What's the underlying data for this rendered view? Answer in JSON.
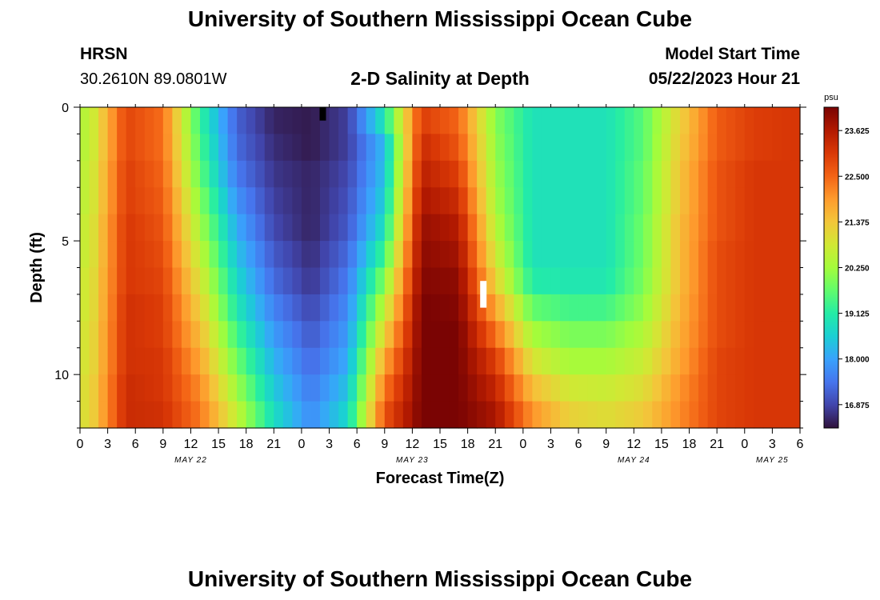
{
  "header": {
    "title": "University of Southern Mississippi Ocean Cube",
    "station": "HRSN",
    "coords": "30.2610N  89.0801W",
    "plot_title": "2-D Salinity at Depth",
    "model_label": "Model Start Time",
    "model_time": "05/22/2023 Hour 21"
  },
  "footer": {
    "title": "University of Southern Mississippi Ocean Cube"
  },
  "colors": {
    "colormap": [
      "#30123b",
      "#4145ab",
      "#4675ed",
      "#39a2fc",
      "#1bcfd4",
      "#24eca6",
      "#61fc6c",
      "#a4fc3b",
      "#d1e834",
      "#f3c63a",
      "#fe9b2d",
      "#f36315",
      "#d93806",
      "#b11901",
      "#7a0403"
    ]
  },
  "chart_data": {
    "type": "heatmap",
    "title": "2-D Salinity at Depth",
    "xlabel": "Forecast Time(Z)",
    "ylabel": "Depth (ft)",
    "x_ticks": [
      "0",
      "3",
      "6",
      "9",
      "12",
      "15",
      "18",
      "21",
      "0",
      "3",
      "6",
      "9",
      "12",
      "15",
      "18",
      "21",
      "0",
      "3",
      "6",
      "9",
      "12",
      "15",
      "18",
      "21",
      "0",
      "3",
      "6"
    ],
    "x_tick_hours": [
      0,
      3,
      6,
      9,
      12,
      15,
      18,
      21,
      24,
      27,
      30,
      33,
      36,
      39,
      42,
      45,
      48,
      51,
      54,
      57,
      60,
      63,
      66,
      69,
      72,
      75,
      78
    ],
    "x_range_hours": [
      0,
      78
    ],
    "day_labels": [
      "MAY 22",
      "MAY 23",
      "MAY 24",
      "MAY 25"
    ],
    "day_label_hours": [
      12,
      36,
      60,
      75
    ],
    "y_ticks": [
      "0",
      "5",
      "10"
    ],
    "y_tick_values": [
      0,
      5,
      10
    ],
    "y_range": [
      0,
      12
    ],
    "y_inverted": true,
    "colorbar": {
      "unit": "psu",
      "tick_labels": [
        "16.875",
        "18.000",
        "19.125",
        "20.250",
        "21.375",
        "22.500",
        "23.625"
      ],
      "tick_values": [
        16.875,
        18.0,
        19.125,
        20.25,
        21.375,
        22.5,
        23.625
      ],
      "range": [
        16.3,
        24.2
      ]
    },
    "depth_levels_ft": [
      0.5,
      1.5,
      2.5,
      3.5,
      4.5,
      5.5,
      6.5,
      7.5,
      8.5,
      9.5,
      10.5,
      11.5
    ],
    "hour_columns": [
      1,
      5,
      9,
      13,
      17,
      21,
      25,
      29,
      33,
      37,
      41,
      45,
      49,
      53,
      57,
      61,
      65,
      69,
      73,
      77
    ],
    "salinity_psu": [
      [
        20.5,
        22.9,
        22.4,
        19.3,
        17.2,
        16.5,
        16.4,
        16.8,
        19.0,
        23.0,
        22.5,
        20.0,
        18.9,
        18.9,
        18.9,
        19.6,
        21.2,
        22.6,
        23.0,
        23.1
      ],
      [
        20.5,
        22.9,
        22.4,
        19.5,
        17.3,
        16.6,
        16.4,
        16.8,
        18.3,
        23.3,
        22.7,
        20.1,
        18.9,
        18.9,
        18.9,
        19.6,
        21.3,
        22.6,
        23.0,
        23.1
      ],
      [
        20.6,
        23.0,
        22.5,
        19.7,
        17.5,
        16.7,
        16.5,
        16.9,
        18.4,
        23.5,
        23.0,
        20.2,
        18.9,
        18.9,
        18.9,
        19.7,
        21.4,
        22.7,
        23.1,
        23.1
      ],
      [
        20.6,
        23.0,
        22.6,
        20.0,
        17.8,
        16.8,
        16.5,
        17.0,
        18.6,
        23.7,
        23.3,
        20.3,
        18.9,
        18.9,
        18.9,
        19.7,
        21.4,
        22.7,
        23.1,
        23.1
      ],
      [
        20.7,
        23.1,
        22.7,
        20.3,
        18.1,
        16.9,
        16.5,
        17.1,
        18.9,
        23.9,
        23.6,
        20.5,
        18.9,
        18.9,
        18.9,
        19.8,
        21.5,
        22.7,
        23.1,
        23.1
      ],
      [
        20.7,
        23.1,
        22.8,
        20.6,
        18.4,
        17.1,
        16.6,
        17.3,
        19.4,
        24.0,
        23.8,
        20.8,
        18.9,
        18.9,
        18.9,
        19.8,
        21.5,
        22.8,
        23.1,
        23.1
      ],
      [
        20.8,
        23.1,
        22.9,
        20.9,
        18.7,
        17.3,
        16.7,
        17.5,
        20.0,
        24.1,
        24.0,
        21.2,
        19.1,
        19.0,
        19.0,
        19.9,
        21.5,
        22.8,
        23.1,
        23.1
      ],
      [
        20.8,
        23.2,
        23.0,
        21.2,
        19.0,
        17.6,
        16.9,
        17.7,
        20.6,
        24.2,
        24.1,
        21.8,
        19.7,
        19.4,
        19.4,
        20.1,
        21.6,
        22.8,
        23.1,
        23.1
      ],
      [
        20.9,
        23.2,
        23.0,
        21.5,
        19.4,
        17.9,
        17.1,
        17.9,
        21.2,
        24.2,
        24.2,
        22.4,
        20.3,
        19.9,
        19.9,
        20.4,
        21.7,
        22.8,
        23.1,
        23.1
      ],
      [
        20.9,
        23.2,
        23.1,
        21.8,
        19.8,
        18.2,
        17.3,
        18.1,
        21.8,
        24.2,
        24.2,
        23.0,
        20.9,
        20.3,
        20.3,
        20.7,
        21.8,
        22.9,
        23.1,
        23.1
      ],
      [
        21.0,
        23.3,
        23.1,
        22.1,
        20.2,
        18.5,
        17.5,
        18.4,
        22.3,
        24.2,
        24.2,
        23.4,
        21.5,
        20.8,
        20.7,
        21.0,
        22.0,
        22.9,
        23.1,
        23.1
      ],
      [
        21.0,
        23.3,
        23.2,
        22.3,
        20.6,
        18.8,
        17.7,
        18.7,
        22.7,
        24.2,
        24.2,
        23.7,
        22.0,
        21.2,
        21.0,
        21.3,
        22.1,
        22.9,
        23.1,
        23.1
      ]
    ],
    "markers": [
      {
        "hour": 26.3,
        "depth": [
          0,
          0.5
        ],
        "color": "#000000"
      },
      {
        "hour": 43.7,
        "depth": [
          6.5,
          7.5
        ],
        "color": "#ffffff"
      }
    ]
  }
}
